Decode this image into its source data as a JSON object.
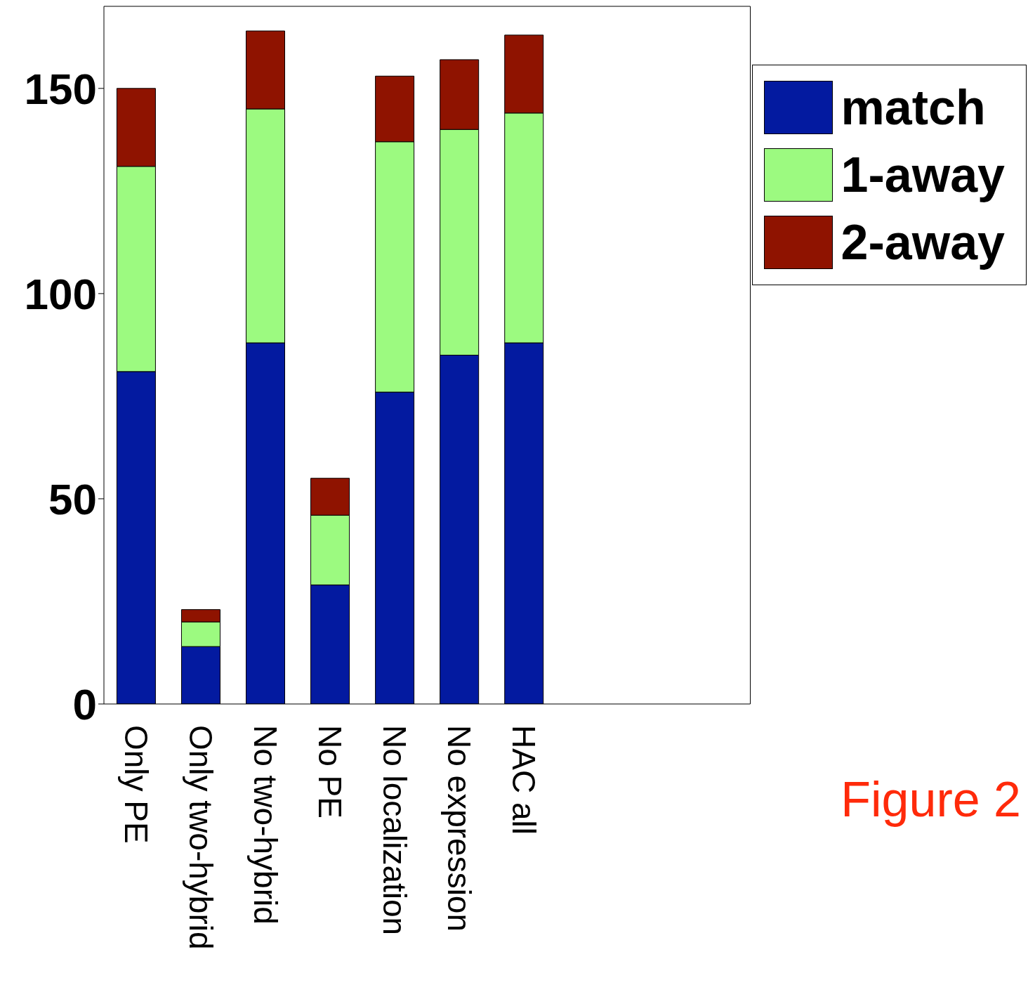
{
  "chart_data": {
    "type": "bar",
    "stacked": true,
    "categories": [
      "Only PE",
      "Only two-hybrid",
      "No two-hybrid",
      "No PE",
      "No localization",
      "No expression",
      "HAC all",
      null,
      null,
      null
    ],
    "series": [
      {
        "name": "match",
        "color": "#031aa0",
        "values": [
          81,
          14,
          88,
          29,
          76,
          85,
          88,
          null,
          null,
          null
        ]
      },
      {
        "name": "1-away",
        "color": "#9cfa80",
        "values": [
          50,
          6,
          57,
          17,
          61,
          55,
          56,
          null,
          null,
          null
        ]
      },
      {
        "name": "2-away",
        "color": "#8f1300",
        "values": [
          19,
          3,
          19,
          9,
          16,
          17,
          19,
          null,
          null,
          null
        ]
      }
    ],
    "ylim": [
      0,
      170
    ],
    "yticks": [
      0,
      50,
      100,
      150
    ],
    "grid": false,
    "legend": "top right",
    "annotations": [
      "Figure 2"
    ]
  }
}
